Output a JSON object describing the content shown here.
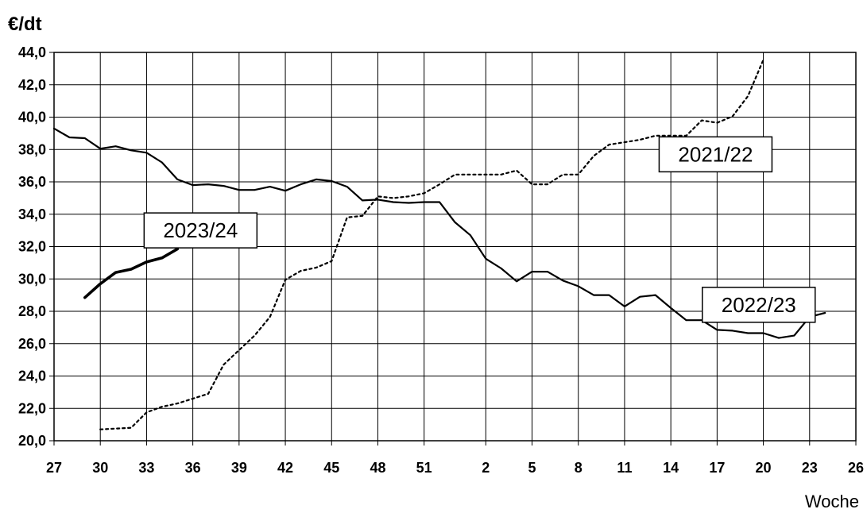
{
  "chart_data": {
    "type": "line",
    "ylabel": "€/dt",
    "xlabel": "Woche",
    "ylim": [
      20,
      44
    ],
    "y_ticks": [
      "20,0",
      "22,0",
      "24,0",
      "26,0",
      "28,0",
      "30,0",
      "32,0",
      "34,0",
      "36,0",
      "38,0",
      "40,0",
      "42,0",
      "44,0"
    ],
    "x_ticks": [
      "27",
      "30",
      "33",
      "36",
      "39",
      "42",
      "45",
      "48",
      "51",
      "2",
      "5",
      "8",
      "11",
      "14",
      "17",
      "20",
      "23",
      "26"
    ],
    "grid": true,
    "series": [
      {
        "name": "2022/23",
        "style": "solid",
        "values": [
          [
            27,
            39.3
          ],
          [
            28,
            38.75
          ],
          [
            29,
            38.7
          ],
          [
            30,
            38.05
          ],
          [
            31,
            38.2
          ],
          [
            32,
            37.95
          ],
          [
            33,
            37.8
          ],
          [
            34,
            37.2
          ],
          [
            35,
            36.15
          ],
          [
            36,
            35.8
          ],
          [
            37,
            35.85
          ],
          [
            38,
            35.75
          ],
          [
            39,
            35.5
          ],
          [
            40,
            35.5
          ],
          [
            41,
            35.7
          ],
          [
            42,
            35.45
          ],
          [
            43,
            35.85
          ],
          [
            44,
            36.15
          ],
          [
            45,
            36.05
          ],
          [
            46,
            35.7
          ],
          [
            47,
            34.85
          ],
          [
            48,
            34.9
          ],
          [
            49,
            34.75
          ],
          [
            50,
            34.7
          ],
          [
            51,
            34.75
          ],
          [
            52,
            34.75
          ],
          [
            1,
            33.5
          ],
          [
            2,
            32.7
          ],
          [
            3,
            31.25
          ],
          [
            4,
            30.65
          ],
          [
            5,
            29.85
          ],
          [
            6,
            30.45
          ],
          [
            7,
            30.45
          ],
          [
            8,
            29.9
          ],
          [
            9,
            29.55
          ],
          [
            10,
            29.0
          ],
          [
            11,
            29.0
          ],
          [
            12,
            28.3
          ],
          [
            13,
            28.9
          ],
          [
            14,
            29.0
          ],
          [
            15,
            28.2
          ],
          [
            16,
            27.45
          ],
          [
            17,
            27.45
          ],
          [
            18,
            26.85
          ],
          [
            19,
            26.8
          ],
          [
            20,
            26.65
          ],
          [
            21,
            26.65
          ],
          [
            22,
            26.35
          ],
          [
            23,
            26.5
          ],
          [
            24,
            27.65
          ],
          [
            25,
            27.9
          ]
        ]
      },
      {
        "name": "2021/22",
        "style": "dotted",
        "values": [
          [
            30,
            20.7
          ],
          [
            31,
            20.75
          ],
          [
            32,
            20.8
          ],
          [
            33,
            21.75
          ],
          [
            34,
            22.1
          ],
          [
            35,
            22.3
          ],
          [
            36,
            22.6
          ],
          [
            37,
            22.9
          ],
          [
            38,
            24.7
          ],
          [
            39,
            25.6
          ],
          [
            40,
            26.5
          ],
          [
            41,
            27.65
          ],
          [
            42,
            29.95
          ],
          [
            43,
            30.5
          ],
          [
            44,
            30.7
          ],
          [
            45,
            31.1
          ],
          [
            46,
            33.8
          ],
          [
            47,
            33.9
          ],
          [
            48,
            35.1
          ],
          [
            49,
            35.0
          ],
          [
            50,
            35.1
          ],
          [
            51,
            35.3
          ],
          [
            52,
            35.85
          ],
          [
            1,
            36.45
          ],
          [
            2,
            36.45
          ],
          [
            3,
            36.45
          ],
          [
            4,
            36.45
          ],
          [
            5,
            36.7
          ],
          [
            6,
            35.85
          ],
          [
            7,
            35.85
          ],
          [
            8,
            36.45
          ],
          [
            9,
            36.45
          ],
          [
            10,
            37.6
          ],
          [
            11,
            38.3
          ],
          [
            12,
            38.45
          ],
          [
            13,
            38.6
          ],
          [
            14,
            38.85
          ],
          [
            15,
            38.85
          ],
          [
            16,
            38.85
          ],
          [
            17,
            39.8
          ],
          [
            18,
            39.65
          ],
          [
            19,
            40.05
          ],
          [
            20,
            41.3
          ],
          [
            21,
            43.55
          ]
        ]
      },
      {
        "name": "2023/24",
        "style": "bold",
        "values": [
          [
            29,
            28.85
          ],
          [
            30,
            29.7
          ],
          [
            31,
            30.4
          ],
          [
            32,
            30.6
          ],
          [
            33,
            31.05
          ],
          [
            34,
            31.3
          ],
          [
            35,
            31.85
          ]
        ]
      }
    ],
    "series_labels": [
      {
        "text": "2023/24",
        "x": 36.5,
        "y": 33.0
      },
      {
        "text": "2021/22",
        "x": 17.9,
        "y": 37.7
      },
      {
        "text": "2022/23",
        "x": 20.7,
        "y": 28.4
      }
    ]
  }
}
